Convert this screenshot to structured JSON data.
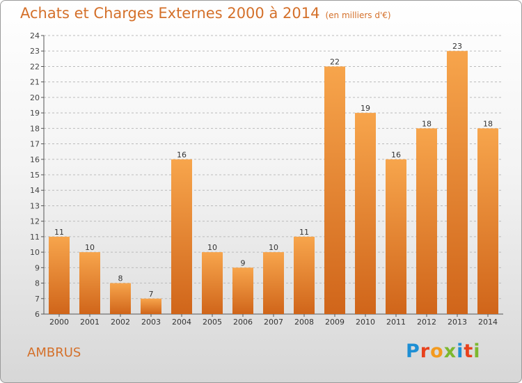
{
  "title": "Achats et Charges Externes 2000 à 2014",
  "unit": "(en milliers d'€)",
  "place": "AMBRUS",
  "brand": {
    "text": "Proxiti",
    "letter_colors": [
      "#1e8fd4",
      "#e8411c",
      "#f39a1e",
      "#7cb82f",
      "#1e8fd4",
      "#e8411c",
      "#7cb82f"
    ]
  },
  "colors": {
    "accent": "#d4702a",
    "bar_light": "#f7a54c",
    "bar_dark": "#d0651a",
    "grid": "#bbbbbb"
  },
  "chart_data": {
    "type": "bar",
    "categories": [
      "2000",
      "2001",
      "2002",
      "2003",
      "2004",
      "2005",
      "2006",
      "2007",
      "2008",
      "2009",
      "2010",
      "2011",
      "2012",
      "2013",
      "2014"
    ],
    "values": [
      11,
      10,
      8,
      7,
      16,
      10,
      9,
      10,
      11,
      22,
      19,
      16,
      18,
      23,
      18
    ],
    "title": "Achats et Charges Externes 2000 à 2014",
    "ylim": [
      6,
      24
    ],
    "yticks": [
      6,
      7,
      8,
      9,
      10,
      11,
      12,
      13,
      14,
      15,
      16,
      17,
      18,
      19,
      20,
      21,
      22,
      23,
      24
    ],
    "grid": true,
    "data_labels": true
  }
}
